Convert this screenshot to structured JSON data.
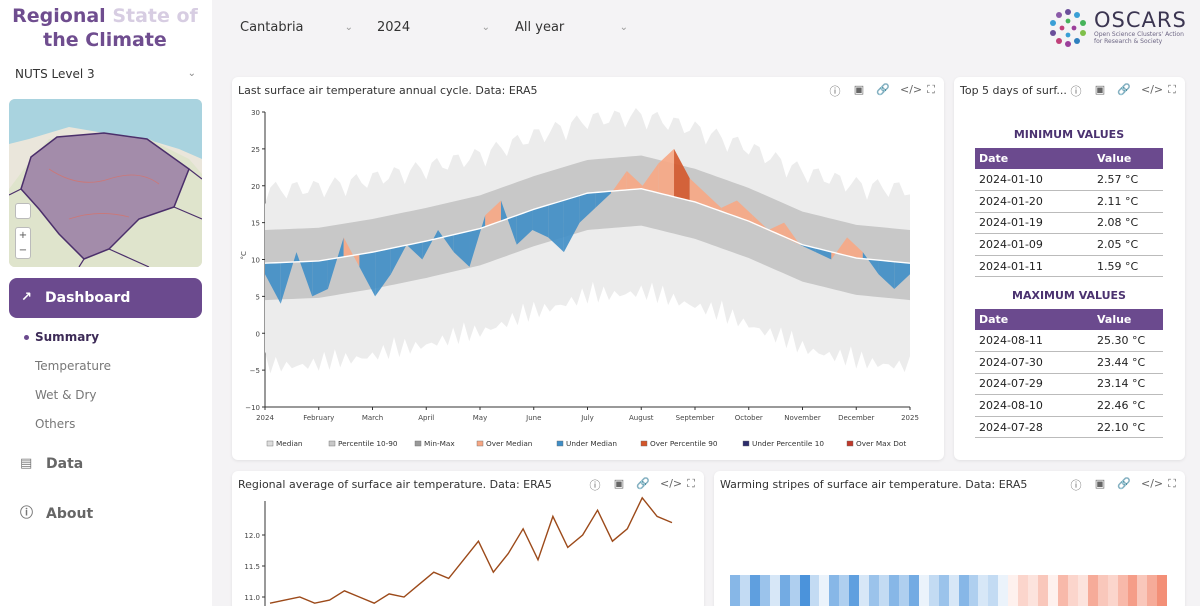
{
  "brand": {
    "line1_a": "Regional",
    "line1_b": "State of",
    "line2": "the Climate"
  },
  "sidebar": {
    "level_select": "NUTS Level 3",
    "dashboard_label": "Dashboard",
    "sub_items": [
      {
        "label": "Summary",
        "active": true
      },
      {
        "label": "Temperature"
      },
      {
        "label": "Wet & Dry"
      },
      {
        "label": "Others"
      }
    ],
    "nav": [
      {
        "label": "Data",
        "icon": "database-icon"
      },
      {
        "label": "About",
        "icon": "help-icon"
      }
    ]
  },
  "header": {
    "region": "Cantabria",
    "year": "2024",
    "period": "All year"
  },
  "logo": {
    "name": "OSCARS",
    "sub1": "Open Science Clusters' Action",
    "sub2": "for Research & Society"
  },
  "panels": {
    "annual": {
      "title": "Last surface air temperature annual cycle. Data: ERA5"
    },
    "top5": {
      "title": "Top 5 days of surf..."
    },
    "regional": {
      "title": "Regional average of surface air temperature. Data: ERA5"
    },
    "stripes": {
      "title": "Warming stripes of surface air temperature. Data: ERA5"
    }
  },
  "top5": {
    "min_title": "MINIMUM VALUES",
    "max_title": "MAXIMUM VALUES",
    "col_date": "Date",
    "col_value": "Value",
    "min_rows": [
      {
        "date": "2024-01-10",
        "value": "2.57 °C"
      },
      {
        "date": "2024-01-20",
        "value": "2.11 °C"
      },
      {
        "date": "2024-01-19",
        "value": "2.08 °C"
      },
      {
        "date": "2024-01-09",
        "value": "2.05 °C"
      },
      {
        "date": "2024-01-11",
        "value": "1.59 °C"
      }
    ],
    "max_rows": [
      {
        "date": "2024-08-11",
        "value": "25.30 °C"
      },
      {
        "date": "2024-07-30",
        "value": "23.44 °C"
      },
      {
        "date": "2024-07-29",
        "value": "23.14 °C"
      },
      {
        "date": "2024-08-10",
        "value": "22.46 °C"
      },
      {
        "date": "2024-07-28",
        "value": "22.10 °C"
      }
    ]
  },
  "colors": {
    "purple": "#6b4a8e",
    "over_median": "#f7a784",
    "under_median": "#3f8ec7",
    "over_p90": "#d4562a",
    "band_1090": "#c8c8c8",
    "band_minmax": "#ececec",
    "line": "#9c4a1a"
  },
  "chart_data": [
    {
      "type": "area",
      "title": "Last surface air temperature annual cycle. Data: ERA5",
      "ylabel": "°C",
      "ylim": [
        -10,
        30
      ],
      "yticks": [
        "30",
        "25",
        "20",
        "15",
        "10",
        "5",
        "0",
        "−5",
        "−10"
      ],
      "yticks_values": [
        30,
        25,
        20,
        15,
        10,
        5,
        0,
        -5,
        -10
      ],
      "xticks": [
        "2024",
        "February",
        "March",
        "April",
        "May",
        "June",
        "July",
        "August",
        "September",
        "October",
        "November",
        "December",
        "2025"
      ],
      "legend": [
        "Median",
        "Percentile 10-90",
        "Min-Max",
        "Over Median",
        "Under Median",
        "Over Percentile 90",
        "Under Percentile 10",
        "Over Max Dot"
      ],
      "months_median": [
        9.5,
        9.8,
        11.0,
        12.5,
        14.2,
        16.8,
        19.0,
        19.6,
        17.8,
        15.2,
        12.0,
        10.2,
        9.5
      ],
      "series_daily_sample": [
        8,
        4,
        11,
        5,
        6,
        13,
        9,
        5,
        8,
        12,
        10,
        14,
        11,
        9,
        16,
        18,
        12,
        14,
        13,
        11,
        15,
        17,
        19,
        22,
        20,
        23,
        25,
        21,
        19,
        17,
        18,
        16,
        14,
        15,
        12,
        11,
        10,
        13,
        11,
        8,
        6,
        8
      ]
    },
    {
      "type": "line",
      "title": "Regional average of surface air temperature. Data: ERA5",
      "yticks": [
        "12.0",
        "11.5",
        "11.0"
      ],
      "yticks_values": [
        12.0,
        11.5,
        11.0
      ],
      "values": [
        10.9,
        10.95,
        11.0,
        10.9,
        10.95,
        11.1,
        11.0,
        10.9,
        11.05,
        11.0,
        11.2,
        11.4,
        11.3,
        11.6,
        11.9,
        11.4,
        11.7,
        12.1,
        11.6,
        12.3,
        11.8,
        12.0,
        12.4,
        11.9,
        12.1,
        12.6,
        12.3,
        12.2
      ]
    },
    {
      "type": "heatmap",
      "title": "Warming stripes of surface air temperature. Data: ERA5",
      "values": [
        -0.6,
        -0.3,
        -0.8,
        -0.5,
        -0.2,
        -0.7,
        -0.4,
        -0.9,
        -0.3,
        -0.1,
        -0.6,
        -0.4,
        -0.8,
        -0.2,
        -0.5,
        -0.3,
        -0.6,
        -0.4,
        -0.7,
        -0.1,
        -0.3,
        -0.5,
        -0.2,
        -0.6,
        -0.4,
        -0.2,
        -0.3,
        -0.1,
        0.1,
        0.3,
        0.2,
        0.4,
        0.1,
        0.5,
        0.3,
        0.2,
        0.6,
        0.4,
        0.3,
        0.5,
        0.7,
        0.4,
        0.6,
        0.8
      ]
    }
  ]
}
